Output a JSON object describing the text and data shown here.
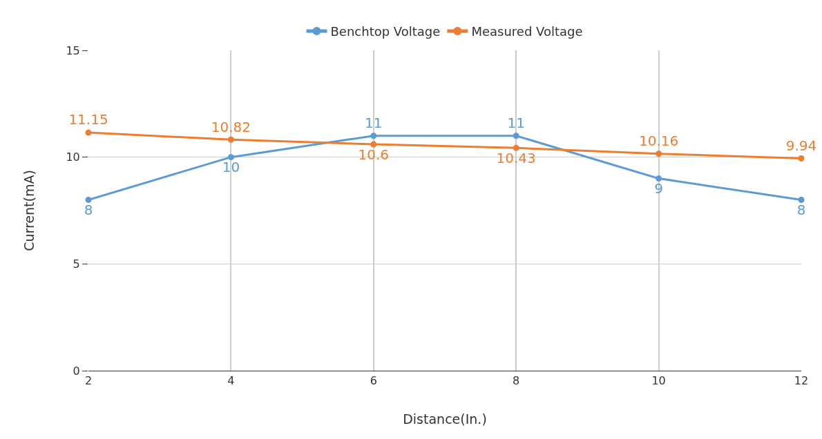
{
  "chart_data": {
    "type": "line",
    "xlabel": "Distance(In.)",
    "ylabel": "Current(mA)",
    "x": [
      2,
      4,
      6,
      8,
      10,
      12
    ],
    "series": [
      {
        "name": "Benchtop Voltage",
        "color": "#5b9bd5",
        "values": [
          8,
          10,
          11,
          11,
          9,
          8
        ]
      },
      {
        "name": "Measured Voltage",
        "color": "#ed7d31",
        "values": [
          11.15,
          10.82,
          10.6,
          10.43,
          10.16,
          9.94
        ]
      }
    ],
    "xlim": [
      2,
      12
    ],
    "xticks": [
      2,
      4,
      6,
      8,
      10,
      12
    ],
    "ylim": [
      0,
      15
    ],
    "yticks": [
      0,
      5,
      10,
      15
    ],
    "grid": true,
    "legend": "top",
    "marker": "circle",
    "line_style": "solid",
    "data_labels": true
  }
}
